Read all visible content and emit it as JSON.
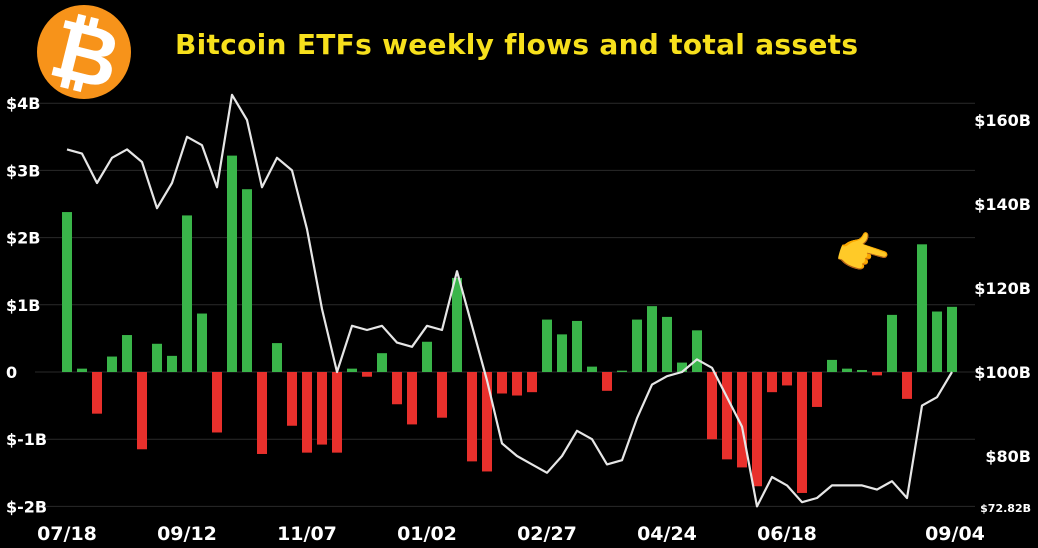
{
  "header": {
    "title": "Bitcoin ETFs weekly flows and total assets",
    "logo_glyph": "₿",
    "logo_icon": "bitcoin-logo-icon",
    "pointer_icon": "pointing-hand-icon",
    "pointer_glyph": "👉"
  },
  "colors": {
    "background": "#000000",
    "title": "#f7e01c",
    "inflow": "#3ab54a",
    "outflow": "#e8302c",
    "assets_line": "#e6e6e6",
    "bitcoin": "#f7931a"
  },
  "chart_data": {
    "type": "bar",
    "title": "Bitcoin ETFs weekly flows and total assets",
    "x_tick_labels": [
      "07/18",
      "09/12",
      "11/07",
      "01/02",
      "02/27",
      "04/24",
      "06/18",
      "09/04"
    ],
    "x_tick_index": [
      0,
      8,
      16,
      24,
      32,
      40,
      48,
      60
    ],
    "y_left": {
      "ticks": [
        "$4B",
        "$3B",
        "$2B",
        "$1B",
        "0",
        "$-1B",
        "$-2B"
      ],
      "tick_values": [
        4,
        3,
        2,
        1,
        0,
        -1,
        -2
      ],
      "range": [
        -2,
        4
      ],
      "unit": "billion USD"
    },
    "y_right": {
      "ticks": [
        "$160B",
        "$140B",
        "$120B",
        "$100B",
        "$80B",
        "$72.82B"
      ],
      "tick_values": [
        160,
        140,
        120,
        100,
        80,
        72.82
      ],
      "range": [
        72.82,
        166
      ]
    },
    "grid": true,
    "series": [
      {
        "kind": "bar",
        "values": [
          2.38,
          0.05,
          -0.62,
          0.23,
          0.55,
          -1.15,
          0.42,
          0.24,
          2.33,
          0.87,
          -0.9,
          3.22,
          2.72,
          -1.22,
          0.43,
          -0.8,
          -1.2,
          -1.08,
          -1.2,
          0.05,
          -0.07,
          0.28,
          -0.48,
          -0.78,
          0.45,
          -0.68,
          1.4,
          -1.33,
          -1.48,
          -0.32,
          -0.35,
          -0.3,
          0.78,
          0.56,
          0.76,
          0.08,
          -0.28,
          0.02,
          0.78,
          0.98,
          0.82,
          0.14,
          0.62,
          -1.0,
          -1.3,
          -1.42,
          -1.7,
          -0.3,
          -0.2,
          -1.8,
          -0.52,
          0.18,
          0.05,
          0.03,
          -0.05,
          0.85,
          -0.4,
          1.9,
          0.9,
          0.97
        ]
      },
      {
        "kind": "line",
        "values": [
          153,
          152,
          145,
          151,
          153,
          150,
          139,
          145,
          156,
          154,
          144,
          166,
          160,
          144,
          151,
          148,
          134,
          115,
          100,
          111,
          110,
          111,
          107,
          106,
          111,
          110,
          124,
          111,
          98,
          83,
          80,
          78,
          76,
          80,
          86,
          84,
          78,
          79,
          89,
          97,
          99,
          100,
          103,
          101,
          94,
          87,
          68,
          75,
          73,
          69,
          70,
          73,
          73,
          73,
          72,
          74,
          70,
          92,
          94,
          100
        ]
      }
    ]
  }
}
